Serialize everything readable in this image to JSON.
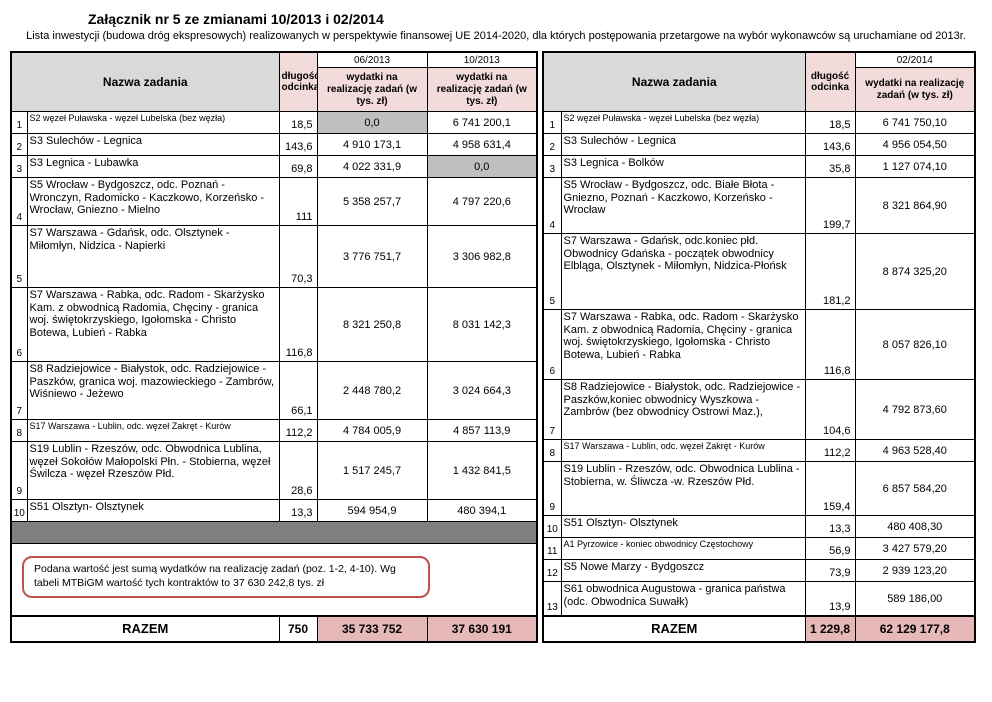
{
  "title": "Załącznik nr 5 ze zmianami 10/2013 i 02/2014",
  "subtitle": "Lista inwestycji (budowa dróg ekspresowych) realizowanych w perspektywie finansowej UE 2014-2020, dla których postępowania przetargowe na wybór wykonawców są uruchamiane od 2013r.",
  "colors": {
    "header_gray": "#d9d9d9",
    "header_pink": "#f2dcdb",
    "total_pink": "#e6b8b7",
    "zero_cell_gray": "#bfbfbf",
    "separator_gray": "#7f7f7f",
    "note_border_red": "#c0504d"
  },
  "left_table": {
    "header": {
      "name": "Nazwa zadania",
      "length": "długość odcinka",
      "dates": [
        "06/2013",
        "10/2013"
      ],
      "expense_label": "wydatki na realizację zadań (w tys. zł)"
    },
    "rows": [
      {
        "num": "1",
        "name": "S2 węzeł Puławska - węzeł Lubelska (bez węzła)",
        "len": "18,5",
        "values": [
          "0,0",
          "6 741 200,1"
        ],
        "gray": [
          0
        ],
        "compact": true
      },
      {
        "num": "2",
        "name": "S3 Sulechów - Legnica",
        "len": "143,6",
        "values": [
          "4 910 173,1",
          "4 958 631,4"
        ]
      },
      {
        "num": "3",
        "name": "S3 Legnica - Lubawka",
        "len": "69,8",
        "values": [
          "4 022 331,9",
          "0,0"
        ],
        "gray": [
          1
        ]
      },
      {
        "num": "4",
        "name": "S5 Wrocław - Bydgoszcz, odc. Poznań - Wronczyn, Radomicko - Kaczkowo, Korzeńsko - Wrocław, Gniezno - Mielno",
        "len": "111",
        "values": [
          "5 358 257,7",
          "4 797 220,6"
        ]
      },
      {
        "num": "5",
        "name": "S7 Warszawa - Gdańsk, odc. Olsztynek - Miłomłyn, Nidzica - Napierki",
        "len": "70,3",
        "values": [
          "3 776 751,7",
          "3 306 982,8"
        ]
      },
      {
        "num": "6",
        "name": "S7 Warszawa - Rabka, odc. Radom - Skarżysko Kam. z obwodnicą Radomia, Chęciny - granica woj. świętokrzyskiego, Igołomska - Christo Botewa, Lubień - Rabka",
        "len": "116,8",
        "values": [
          "8 321 250,8",
          "8 031 142,3"
        ]
      },
      {
        "num": "7",
        "name": "S8 Radziejowice - Białystok, odc. Radziejowice - Paszków, granica woj. mazowieckiego - Zambrów, Wiśniewo - Jeżewo",
        "len": "66,1",
        "values": [
          "2 448 780,2",
          "3 024 664,3"
        ]
      },
      {
        "num": "8",
        "name": "S17 Warszawa - Lublin, odc. węzeł Zakręt - Kurów",
        "len": "112,2",
        "values": [
          "4 784 005,9",
          "4 857 113,9"
        ],
        "compact": true
      },
      {
        "num": "9",
        "name": "S19 Lublin - Rzeszów, odc. Obwodnica Lublina, węzeł Sokołów Małopolski Płn. - Stobierna, węzeł Świlcza - węzeł Rzeszów Płd.",
        "len": "28,6",
        "values": [
          "1 517 245,7",
          "1 432 841,5"
        ]
      },
      {
        "num": "10",
        "name": "S51 Olsztyn- Olsztynek",
        "len": "13,3",
        "values": [
          "594 954,9",
          "480 394,1"
        ]
      }
    ],
    "note": "Podana wartość jest sumą wydatków na realizację zadań (poz. 1-2, 4-10).  Wg tabeli MTBiGM wartość tych kontraktów  to 37 630 242,8 tys. zł",
    "total": {
      "label": "RAZEM",
      "length": "750",
      "values": [
        "35 733 752",
        "37 630 191"
      ]
    }
  },
  "right_table": {
    "header": {
      "name": "Nazwa zadania",
      "length": "długość odcinka",
      "dates": [
        "02/2014"
      ],
      "expense_label": "wydatki na realizację zadań (w tys. zł)"
    },
    "rows": [
      {
        "num": "1",
        "name": "S2 węzeł Puławska - węzeł Lubelska (bez węzła)",
        "len": "18,5",
        "values": [
          "6 741 750,10"
        ],
        "compact": true
      },
      {
        "num": "2",
        "name": "S3 Sulechów - Legnica",
        "len": "143,6",
        "values": [
          "4 956 054,50"
        ]
      },
      {
        "num": "3",
        "name": "S3 Legnica - Bolków",
        "len": "35,8",
        "values": [
          "1 127 074,10"
        ]
      },
      {
        "num": "4",
        "name": "S5 Wrocław - Bydgoszcz, odc. Białe Błota - Gniezno, Poznań - Kaczkowo, Korzeńsko - Wrocław",
        "len": "199,7",
        "values": [
          "8 321 864,90"
        ]
      },
      {
        "num": "5",
        "name": "S7 Warszawa - Gdańsk, odc.koniec płd. Obwodnicy Gdańska - początek obwodnicy Elbląga, Olsztynek - Miłomłyn, Nidzica-Płońsk",
        "len": "181,2",
        "values": [
          "8 874 325,20"
        ]
      },
      {
        "num": "6",
        "name": "S7 Warszawa - Rabka, odc. Radom - Skarżysko Kam. z obwodnicą Radomia, Chęciny - granica woj. świętokrzyskiego, Igołomska - Christo Botewa, Lubień - Rabka",
        "len": "116,8",
        "values": [
          "8 057 826,10"
        ]
      },
      {
        "num": "7",
        "name": "S8 Radziejowice - Białystok, odc. Radziejowice - Paszków,koniec obwodnicy Wyszkowa - Zambrów (bez obwodnicy Ostrowi Maz.),",
        "len": "104,6",
        "values": [
          "4 792 873,60"
        ]
      },
      {
        "num": "8",
        "name": "S17 Warszawa - Lublin, odc. węzeł Zakręt - Kurów",
        "len": "112,2",
        "values": [
          "4 963 528,40"
        ],
        "compact": true
      },
      {
        "num": "9",
        "name": "S19 Lublin - Rzeszów, odc. Obwodnica Lublina - Stobierna, w. Śliwcza -w. Rzeszów Płd.",
        "len": "159,4",
        "values": [
          "6 857 584,20"
        ]
      },
      {
        "num": "10",
        "name": "S51 Olsztyn- Olsztynek",
        "len": "13,3",
        "values": [
          "480 408,30"
        ]
      },
      {
        "num": "11",
        "name": "A1 Pyrzowice - koniec obwodnicy Częstochowy",
        "len": "56,9",
        "values": [
          "3 427 579,20"
        ],
        "compact": true
      },
      {
        "num": "12",
        "name": "S5 Nowe Marzy - Bydgoszcz",
        "len": "73,9",
        "values": [
          "2 939 123,20"
        ]
      },
      {
        "num": "13",
        "name": "S61 obwodnica Augustowa - granica państwa (odc. Obwodnica Suwałk)",
        "len": "13,9",
        "values": [
          "589 186,00"
        ]
      }
    ],
    "total": {
      "label": "RAZEM",
      "length": "1 229,8",
      "values": [
        "62 129 177,8"
      ]
    }
  }
}
